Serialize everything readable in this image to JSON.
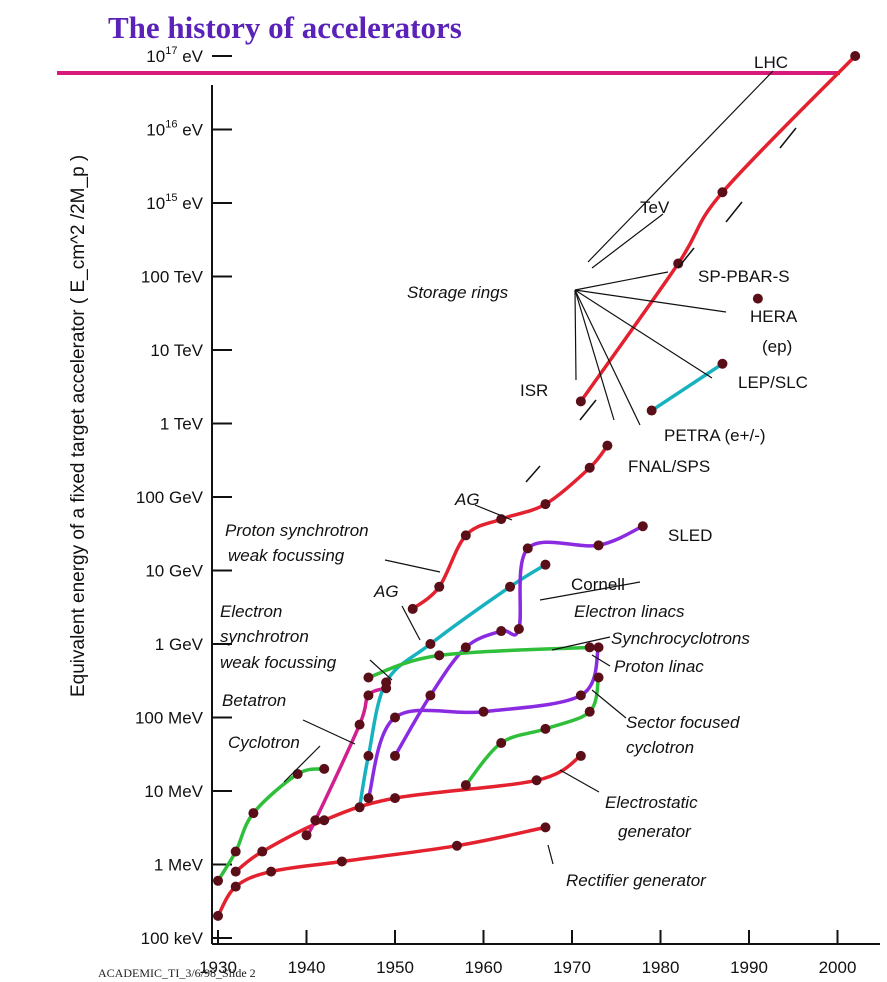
{
  "title": "The history of accelerators",
  "footer_text": "ACADEMIC_TI_3/6/98_Slide 2",
  "colors": {
    "title": "#5a22b8",
    "lhc_line": "#d81b7a",
    "red": "#e3212f",
    "cyan": "#16b2bf",
    "green": "#2fbf3a",
    "purple": "#8a2be2",
    "magenta": "#d0208f",
    "dot": "#5a0e18"
  },
  "chart_data": {
    "type": "line",
    "title": "The history of accelerators",
    "xlabel": "",
    "ylabel": "Equivalent energy of a fixed target accelerator ( E_cm^2 /2M_p )",
    "yscale": "log",
    "xlim": [
      1926,
      2005
    ],
    "ylim": [
      "100 keV",
      "10^17 eV"
    ],
    "x_ticks": [
      "1930",
      "1940",
      "1950",
      "1960",
      "1970",
      "1980",
      "1990",
      "2000"
    ],
    "y_ticks": [
      "100 keV",
      "1 MeV",
      "10 MeV",
      "100 MeV",
      "1 GeV",
      "10 GeV",
      "100 GeV",
      "1 TeV",
      "10 TeV",
      "100 TeV",
      "10^15 eV",
      "10^16 eV",
      "10^17 eV"
    ],
    "series": [
      {
        "name": "Rectifier generator",
        "color": "red",
        "points": [
          [
            1930,
            0.2
          ],
          [
            1932,
            0.5
          ],
          [
            1936,
            0.8
          ],
          [
            1944,
            1.1
          ],
          [
            1957,
            1.8
          ],
          [
            1967,
            3.2
          ]
        ]
      },
      {
        "name": "Electrostatic generator",
        "color": "red",
        "points": [
          [
            1932,
            0.8
          ],
          [
            1935,
            1.5
          ],
          [
            1942,
            4
          ],
          [
            1950,
            8
          ],
          [
            1966,
            14
          ],
          [
            1971,
            30
          ]
        ]
      },
      {
        "name": "Cyclotron",
        "color": "green",
        "points": [
          [
            1930,
            0.6
          ],
          [
            1932,
            1.5
          ],
          [
            1934,
            5
          ],
          [
            1939,
            17
          ],
          [
            1942,
            20
          ]
        ]
      },
      {
        "name": "Betatron",
        "color": "magenta",
        "points": [
          [
            1940,
            2.5
          ],
          [
            1941,
            4
          ],
          [
            1946,
            80
          ],
          [
            1947,
            200
          ],
          [
            1949,
            250
          ]
        ]
      },
      {
        "name": "Electron synchrotron weak focussing",
        "color": "cyan",
        "points": [
          [
            1946,
            6
          ],
          [
            1947,
            30
          ],
          [
            1949,
            300
          ],
          [
            1954,
            1000
          ],
          [
            1963,
            6000
          ],
          [
            1967,
            12000
          ]
        ]
      },
      {
        "name": "Electron linacs",
        "color": "purple",
        "points": [
          [
            1950,
            30
          ],
          [
            1954,
            200
          ],
          [
            1958,
            900
          ],
          [
            1962,
            1500
          ],
          [
            1964,
            1600
          ],
          [
            1965,
            20000
          ],
          [
            1973,
            22000
          ],
          [
            1978,
            40000
          ]
        ]
      },
      {
        "name": "Synchrocyclotrons",
        "color": "green",
        "points": [
          [
            1947,
            350
          ],
          [
            1955,
            700
          ],
          [
            1972,
            900
          ]
        ]
      },
      {
        "name": "Proton linac",
        "color": "purple",
        "points": [
          [
            1947,
            8
          ],
          [
            1950,
            100
          ],
          [
            1960,
            120
          ],
          [
            1971,
            200
          ],
          [
            1973,
            900
          ]
        ]
      },
      {
        "name": "Sector focused cyclotron",
        "color": "green",
        "points": [
          [
            1958,
            12
          ],
          [
            1962,
            45
          ],
          [
            1967,
            70
          ],
          [
            1972,
            120
          ],
          [
            1973,
            350
          ]
        ]
      },
      {
        "name": "Proton synchrotron weak focussing",
        "color": "red",
        "points": [
          [
            1952,
            3000
          ],
          [
            1955,
            6000
          ],
          [
            1958,
            30000
          ],
          [
            1962,
            50000
          ],
          [
            1967,
            80000
          ],
          [
            1972,
            250000
          ],
          [
            1974,
            500000
          ]
        ]
      },
      {
        "name": "Storage rings (proton)",
        "color": "red",
        "points": [
          [
            1971,
            2000000
          ],
          [
            1982,
            150000000
          ],
          [
            1987,
            1400000000
          ],
          [
            2002,
            100000000000
          ]
        ]
      },
      {
        "name": "LEP/SLC",
        "color": "cyan",
        "points": [
          [
            1979,
            1500000
          ],
          [
            1987,
            6500000
          ]
        ]
      },
      {
        "name": "HERA (ep)",
        "color": "none",
        "points": [
          [
            1991,
            50000000
          ]
        ]
      }
    ],
    "labels": {
      "lhc": "LHC",
      "tev": "TeV",
      "sppbars": "SP-PBAR-S",
      "storage": "Storage rings",
      "hera": "HERA",
      "hera2": "(ep)",
      "lep": "LEP/SLC",
      "isr": "ISR",
      "petra": "PETRA (e+/-)",
      "fnal": "FNAL/SPS",
      "ag1": "AG",
      "sled": "SLED",
      "proton_sync": "Proton synchrotron",
      "weak_focus": "weak focussing",
      "ag2": "AG",
      "cornell": "Cornell",
      "e_linacs": "Electron linacs",
      "electron": "Electron",
      "synchrotron": "synchrotron",
      "weak_focus2": "weak focussing",
      "synchro": "Synchrocyclotrons",
      "proton_linac": "Proton linac",
      "betatron": "Betatron",
      "sector1": "Sector focused",
      "sector2": "cyclotron",
      "cyclotron": "Cyclotron",
      "electrostatic1": "Electrostatic",
      "electrostatic2": "generator",
      "rectifier": "Rectifier generator"
    }
  }
}
